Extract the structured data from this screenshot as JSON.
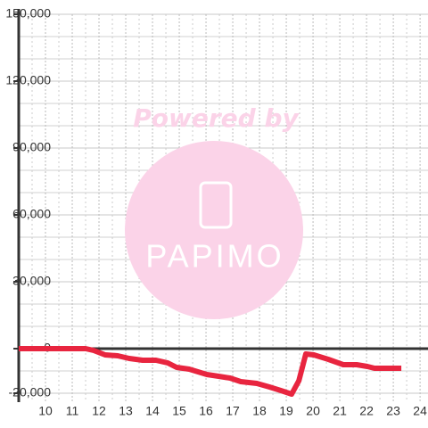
{
  "chart_data": {
    "type": "line",
    "x": [
      9,
      11.5,
      11.8,
      12.23,
      12.7,
      13.13,
      13.63,
      14.13,
      14.57,
      14.9,
      15.37,
      15.7,
      16.03,
      16.47,
      16.9,
      17.3,
      17.9,
      18.37,
      18.8,
      19.2,
      19.47,
      19.73,
      20.03,
      20.57,
      21.13,
      21.63,
      22.03,
      22.3,
      23.3
    ],
    "series": [
      {
        "color": "#e8253f",
        "values": [
          0,
          0,
          -800,
          -2800,
          -3200,
          -4400,
          -5200,
          -5200,
          -6400,
          -8400,
          -9200,
          -10400,
          -11600,
          -12400,
          -13200,
          -14800,
          -15600,
          -17200,
          -18800,
          -20400,
          -14400,
          -2400,
          -2800,
          -4800,
          -7200,
          -7200,
          -8000,
          -8800,
          -8800
        ]
      }
    ],
    "xlim": [
      9,
      24.33
    ],
    "xticks": [
      10,
      11,
      12,
      13,
      14,
      15,
      16,
      17,
      18,
      19,
      20,
      21,
      22,
      23,
      24
    ],
    "x_minor_grid": [
      9.5,
      10.5,
      11.5,
      12.5,
      13.5,
      14.5,
      15.5,
      16.5,
      17.5,
      18.5,
      19.5,
      20.5,
      21.5,
      22.5,
      23.5
    ],
    "ylim": [
      -24000,
      150000
    ],
    "yticks": [
      {
        "value": -20000,
        "label": "-20,000"
      },
      0,
      {
        "value": 30000,
        "label": "30,000"
      },
      {
        "value": 60000,
        "label": "60,000"
      },
      {
        "value": 90000,
        "label": "90,000"
      },
      {
        "value": 120000,
        "label": "120,000"
      },
      {
        "value": 150000,
        "label": "150,000"
      }
    ],
    "y_minor_grid": [
      -10000,
      10000,
      20000,
      40000,
      50000,
      70000,
      80000,
      100000,
      110000,
      130000,
      140000
    ],
    "grid": true,
    "watermark": {
      "top": "Powered by",
      "logo": "PAPIMO"
    }
  }
}
